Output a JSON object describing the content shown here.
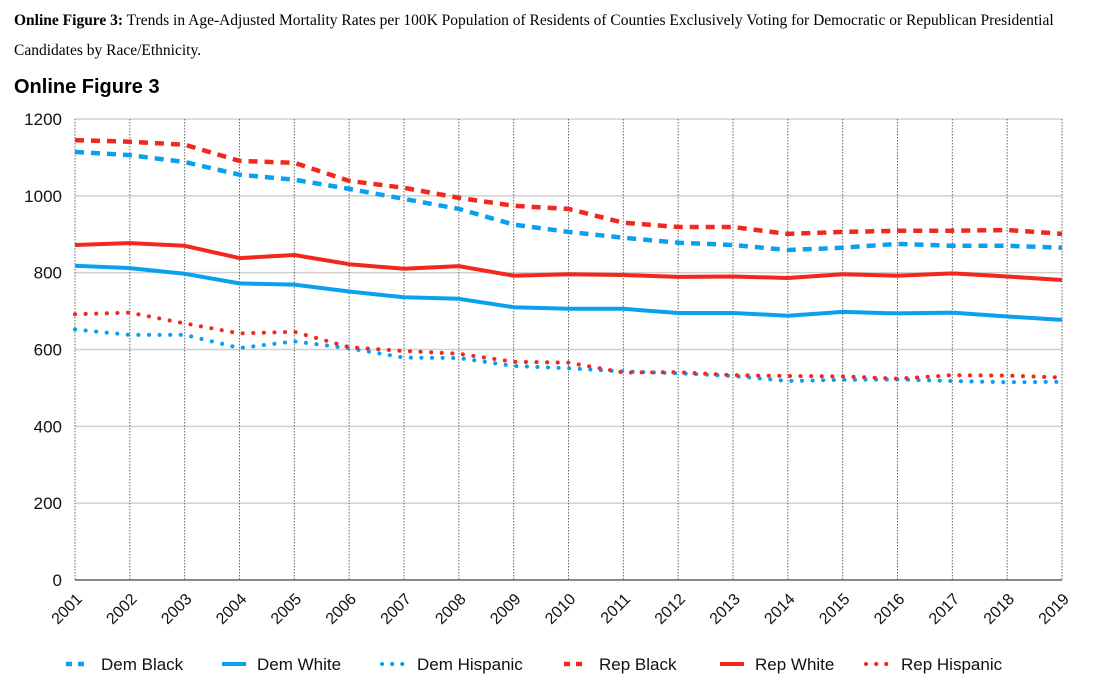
{
  "caption": {
    "label": "Online Figure 3:",
    "text": " Trends in Age-Adjusted Mortality Rates per 100K Population of Residents of Counties Exclusively Voting for Democratic or Republican Presidential Candidates by Race/Ethnicity."
  },
  "chart_data": {
    "type": "line",
    "title": "Online Figure 3",
    "xlabel": "",
    "ylabel": "",
    "ylim": [
      0,
      1200
    ],
    "yticks": [
      0,
      200,
      400,
      600,
      800,
      1000,
      1200
    ],
    "grid": true,
    "legend_position": "bottom",
    "x": [
      "2001",
      "2002",
      "2003",
      "2004",
      "2005",
      "2006",
      "2007",
      "2008",
      "2009",
      "2010",
      "2011",
      "2012",
      "2013",
      "2014",
      "2015",
      "2016",
      "2017",
      "2018",
      "2019"
    ],
    "series": [
      {
        "name": "Dem Black",
        "color": "#0aa0f0",
        "style": "dashed",
        "values": [
          1114,
          1106,
          1088,
          1055,
          1042,
          1018,
          992,
          966,
          925,
          906,
          891,
          878,
          872,
          859,
          865,
          875,
          870,
          870,
          865
        ]
      },
      {
        "name": "Dem White",
        "color": "#0aa0f0",
        "style": "solid",
        "values": [
          818,
          812,
          797,
          772,
          769,
          751,
          736,
          732,
          710,
          706,
          706,
          695,
          695,
          688,
          698,
          694,
          696,
          686,
          677
        ]
      },
      {
        "name": "Dem Hispanic",
        "color": "#0aa0f0",
        "style": "dotted",
        "values": [
          652,
          638,
          638,
          604,
          621,
          603,
          579,
          578,
          557,
          551,
          543,
          538,
          531,
          518,
          521,
          522,
          518,
          515,
          516
        ]
      },
      {
        "name": "Rep Black",
        "color": "#f0281e",
        "style": "dashed",
        "values": [
          1145,
          1141,
          1133,
          1091,
          1086,
          1039,
          1021,
          995,
          974,
          966,
          930,
          919,
          919,
          901,
          906,
          909,
          909,
          911,
          901
        ]
      },
      {
        "name": "Rep White",
        "color": "#f0281e",
        "style": "solid",
        "values": [
          872,
          877,
          870,
          838,
          846,
          822,
          810,
          817,
          792,
          796,
          794,
          789,
          790,
          786,
          796,
          792,
          798,
          790,
          781
        ]
      },
      {
        "name": "Rep Hispanic",
        "color": "#f0281e",
        "style": "dotted",
        "values": [
          692,
          696,
          668,
          642,
          646,
          606,
          596,
          589,
          568,
          566,
          540,
          541,
          533,
          531,
          530,
          524,
          533,
          532,
          527
        ]
      }
    ]
  }
}
